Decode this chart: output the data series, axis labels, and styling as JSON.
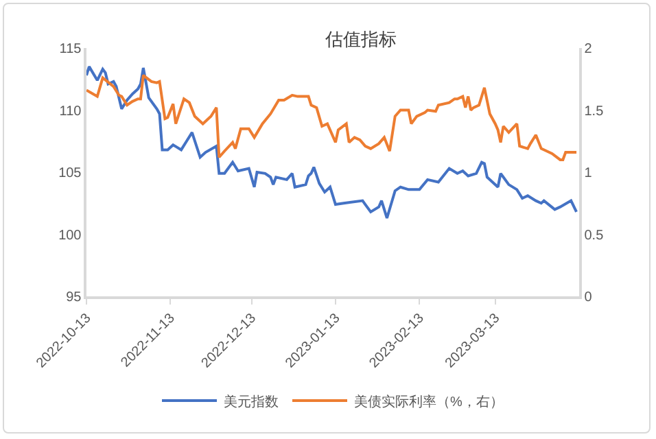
{
  "chart_data": {
    "type": "line",
    "title": "估值指标",
    "legend": "bottom",
    "grid": false,
    "marker": "none",
    "line_style": "solid",
    "xlim": [
      "2022-10-13",
      "2023-04-13"
    ],
    "xticks": [
      "2022-10-13",
      "2022-11-13",
      "2022-12-13",
      "2023-01-13",
      "2023-02-13",
      "2023-03-13"
    ],
    "ylim": [
      95,
      115
    ],
    "yticks": [
      95,
      100,
      105,
      110,
      115
    ],
    "y2lim": [
      0,
      2
    ],
    "y2ticks": [
      0,
      0.5,
      1,
      1.5,
      2
    ],
    "series": [
      {
        "name": "美元指数",
        "color": "#4472c4",
        "x": [
          "2022-10-13",
          "2022-10-14",
          "2022-10-17",
          "2022-10-19",
          "2022-10-20",
          "2022-10-21",
          "2022-10-23",
          "2022-10-24",
          "2022-10-26",
          "2022-10-28",
          "2022-10-30",
          "2022-11-01",
          "2022-11-02",
          "2022-11-03",
          "2022-11-05",
          "2022-11-08",
          "2022-11-09",
          "2022-11-10",
          "2022-11-12",
          "2022-11-14",
          "2022-11-17",
          "2022-11-19",
          "2022-11-21",
          "2022-11-24",
          "2022-11-26",
          "2022-11-30",
          "2022-12-01",
          "2022-12-03",
          "2022-12-06",
          "2022-12-08",
          "2022-12-12",
          "2022-12-14",
          "2022-12-15",
          "2022-12-18",
          "2022-12-20",
          "2022-12-21",
          "2022-12-22",
          "2022-12-26",
          "2022-12-28",
          "2022-12-29",
          "2023-01-02",
          "2023-01-03",
          "2023-01-04",
          "2023-01-05",
          "2023-01-07",
          "2023-01-09",
          "2023-01-11",
          "2023-01-13",
          "2023-01-16",
          "2023-01-23",
          "2023-01-24",
          "2023-01-26",
          "2023-01-29",
          "2023-01-30",
          "2023-02-01",
          "2023-02-04",
          "2023-02-06",
          "2023-02-09",
          "2023-02-13",
          "2023-02-16",
          "2023-02-20",
          "2023-02-24",
          "2023-02-27",
          "2023-03-01",
          "2023-03-03",
          "2023-03-06",
          "2023-03-08",
          "2023-03-09",
          "2023-03-10",
          "2023-03-14",
          "2023-03-15",
          "2023-03-18",
          "2023-03-21",
          "2023-03-23",
          "2023-03-25",
          "2023-03-28",
          "2023-03-30",
          "2023-03-31",
          "2023-04-04",
          "2023-04-06",
          "2023-04-10",
          "2023-04-12"
        ],
        "values": [
          112.8,
          113.5,
          112.4,
          113.3,
          113.0,
          112.1,
          112.3,
          111.9,
          110.1,
          110.8,
          111.3,
          111.7,
          112.1,
          113.4,
          111.0,
          110.1,
          109.7,
          106.8,
          106.8,
          107.2,
          106.8,
          107.5,
          108.2,
          106.2,
          106.6,
          107.1,
          104.9,
          104.9,
          105.8,
          105.1,
          105.3,
          103.8,
          105.0,
          104.9,
          104.6,
          104.0,
          104.6,
          104.4,
          104.9,
          103.8,
          104.0,
          104.7,
          104.9,
          105.4,
          104.1,
          103.4,
          103.8,
          102.4,
          102.5,
          102.7,
          102.4,
          101.8,
          102.2,
          102.7,
          101.3,
          103.5,
          103.8,
          103.6,
          103.6,
          104.4,
          104.2,
          105.3,
          104.9,
          105.1,
          104.7,
          104.9,
          105.8,
          105.7,
          104.6,
          103.8,
          104.9,
          104.0,
          103.6,
          102.9,
          103.1,
          102.7,
          102.5,
          102.7,
          102.0,
          102.2,
          102.7,
          101.8
        ]
      },
      {
        "name": "美债实际利率（%，右）",
        "color": "#ed7d31",
        "axis": "y2",
        "x": [
          "2022-10-13",
          "2022-10-17",
          "2022-10-19",
          "2022-10-23",
          "2022-10-25",
          "2022-10-26",
          "2022-10-28",
          "2022-10-30",
          "2022-11-01",
          "2022-11-02",
          "2022-11-03",
          "2022-11-06",
          "2022-11-08",
          "2022-11-09",
          "2022-11-11",
          "2022-11-12",
          "2022-11-14",
          "2022-11-15",
          "2022-11-18",
          "2022-11-20",
          "2022-11-22",
          "2022-11-25",
          "2022-11-28",
          "2022-11-30",
          "2022-12-01",
          "2022-12-03",
          "2022-12-06",
          "2022-12-07",
          "2022-12-09",
          "2022-12-12",
          "2022-12-14",
          "2022-12-17",
          "2022-12-20",
          "2022-12-23",
          "2022-12-25",
          "2022-12-28",
          "2022-12-30",
          "2023-01-03",
          "2023-01-04",
          "2023-01-06",
          "2023-01-08",
          "2023-01-10",
          "2023-01-13",
          "2023-01-14",
          "2023-01-17",
          "2023-01-18",
          "2023-01-20",
          "2023-01-22",
          "2023-01-24",
          "2023-01-26",
          "2023-01-29",
          "2023-01-31",
          "2023-02-02",
          "2023-02-04",
          "2023-02-06",
          "2023-02-09",
          "2023-02-10",
          "2023-02-12",
          "2023-02-15",
          "2023-02-16",
          "2023-02-19",
          "2023-02-20",
          "2023-02-24",
          "2023-02-26",
          "2023-02-27",
          "2023-03-01",
          "2023-03-02",
          "2023-03-03",
          "2023-03-04",
          "2023-03-05",
          "2023-03-07",
          "2023-03-09",
          "2023-03-11",
          "2023-03-13",
          "2023-03-14",
          "2023-03-15",
          "2023-03-16",
          "2023-03-18",
          "2023-03-21",
          "2023-03-22",
          "2023-03-25",
          "2023-03-26",
          "2023-03-28",
          "2023-03-30",
          "2023-04-01",
          "2023-04-03",
          "2023-04-06",
          "2023-04-07",
          "2023-04-08",
          "2023-04-12"
        ],
        "values": [
          1.66,
          1.61,
          1.76,
          1.69,
          1.62,
          1.61,
          1.54,
          1.57,
          1.59,
          1.59,
          1.78,
          1.73,
          1.72,
          1.73,
          1.43,
          1.44,
          1.55,
          1.39,
          1.59,
          1.56,
          1.45,
          1.39,
          1.45,
          1.52,
          1.12,
          1.17,
          1.24,
          1.19,
          1.35,
          1.35,
          1.28,
          1.39,
          1.47,
          1.58,
          1.58,
          1.62,
          1.61,
          1.61,
          1.54,
          1.52,
          1.37,
          1.39,
          1.24,
          1.34,
          1.39,
          1.24,
          1.28,
          1.26,
          1.21,
          1.19,
          1.23,
          1.28,
          1.17,
          1.45,
          1.5,
          1.5,
          1.39,
          1.45,
          1.48,
          1.5,
          1.49,
          1.54,
          1.56,
          1.59,
          1.59,
          1.61,
          1.52,
          1.61,
          1.5,
          1.52,
          1.54,
          1.68,
          1.47,
          1.39,
          1.34,
          1.24,
          1.37,
          1.32,
          1.39,
          1.21,
          1.19,
          1.23,
          1.3,
          1.19,
          1.17,
          1.15,
          1.1,
          1.1,
          1.16,
          1.16
        ]
      }
    ]
  }
}
